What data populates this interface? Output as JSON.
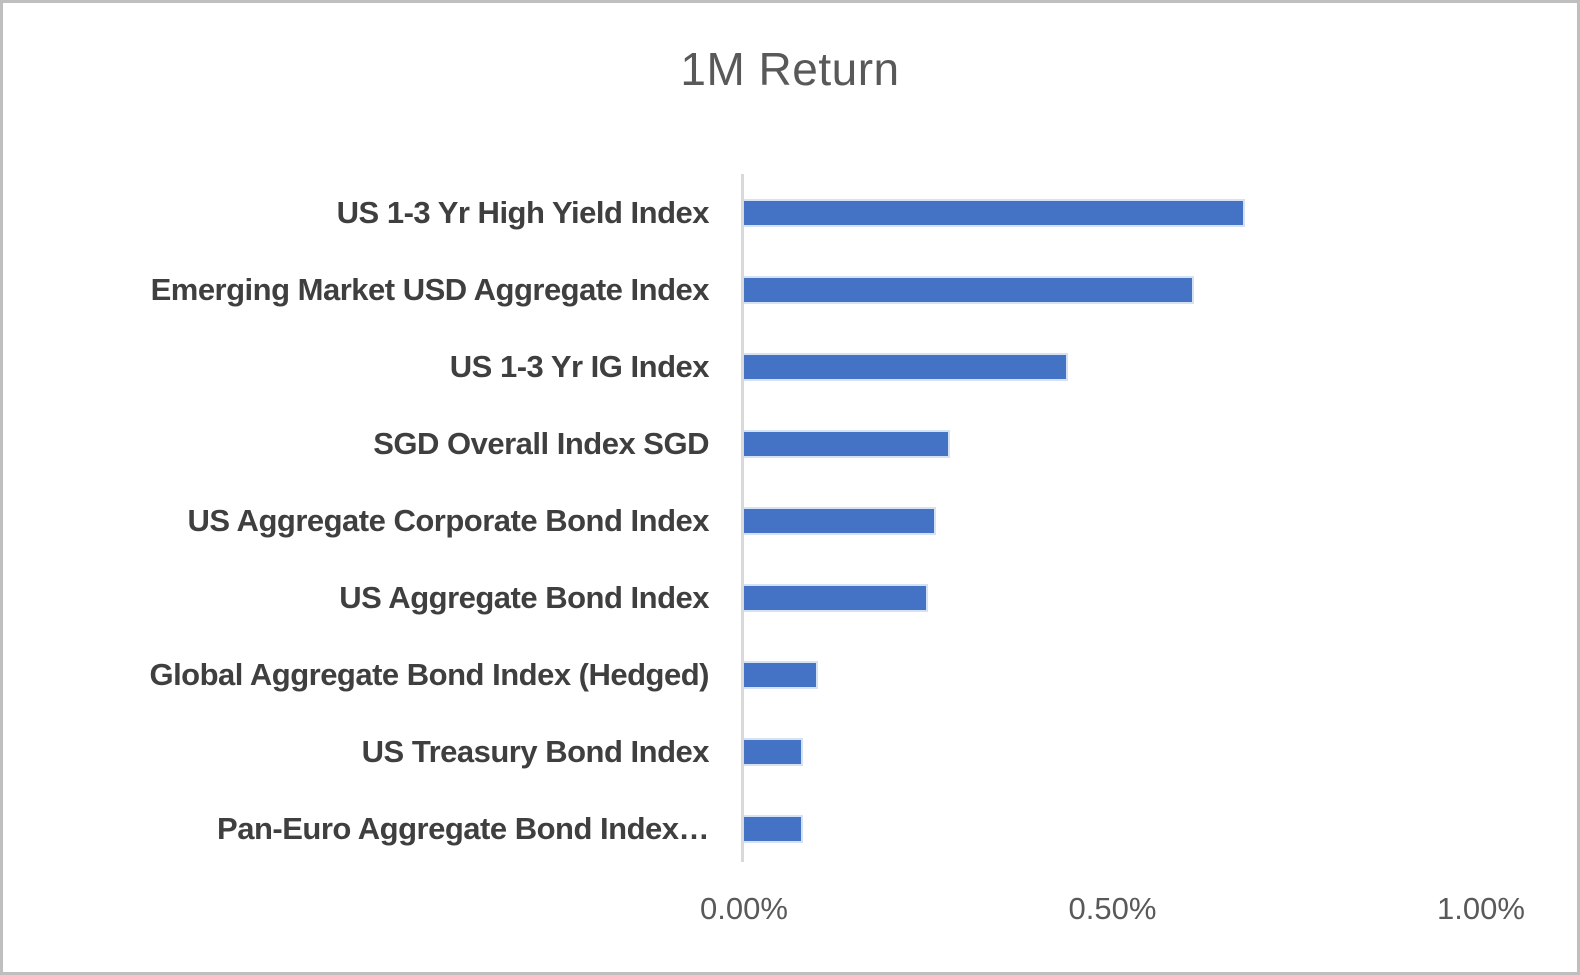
{
  "window": {
    "background": "#ffffff",
    "border_color": "#bfbfbf"
  },
  "chart_data": {
    "type": "bar",
    "orientation": "horizontal",
    "title": "1M Return",
    "categories": [
      "US 1-3 Yr High Yield Index",
      "Emerging Market USD Aggregate Index",
      "US 1-3 Yr IG Index",
      "SGD Overall Index SGD",
      "US Aggregate Corporate Bond Index",
      "US Aggregate Bond Index",
      "Global Aggregate Bond Index (Hedged)",
      "US Treasury Bond Index",
      "Pan-Euro Aggregate Bond Index…"
    ],
    "values": [
      0.68,
      0.61,
      0.44,
      0.28,
      0.26,
      0.25,
      0.1,
      0.08,
      0.08
    ],
    "value_unit": "%",
    "xlabel": "",
    "ylabel": "",
    "xlim": [
      0,
      1.0
    ],
    "x_ticks": [
      "0.00%",
      "0.50%",
      "1.00%"
    ],
    "x_tick_values": [
      0,
      0.5,
      1.0
    ],
    "grid": false,
    "legend": false,
    "colors": {
      "bar": "#4472c4",
      "bar_border": "#d6e2f3",
      "axis_line": "#d9d9d9",
      "title_text": "#595959",
      "category_text": "#3f3f3f",
      "tick_text": "#595959"
    }
  }
}
